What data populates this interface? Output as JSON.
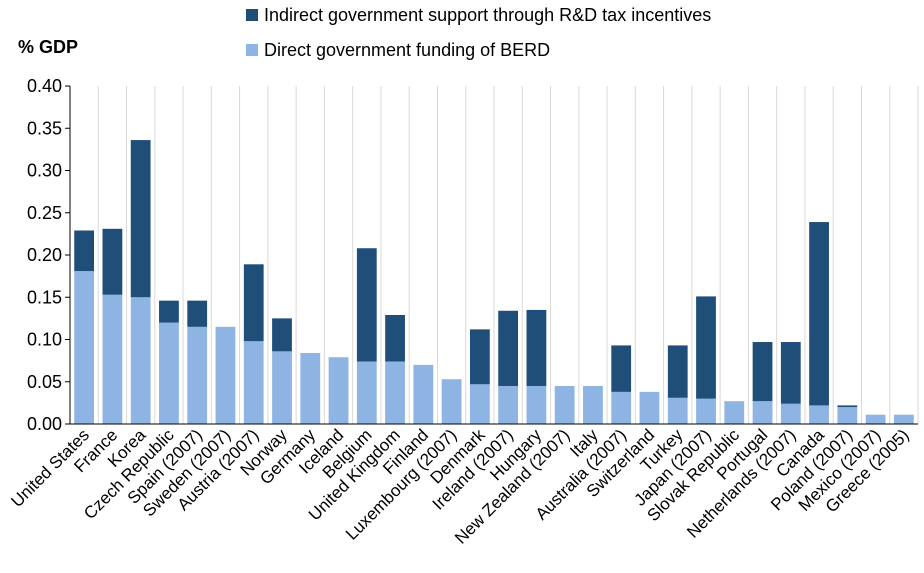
{
  "chart_data": {
    "type": "bar",
    "stacked": true,
    "ylabel": "% GDP",
    "ylim": [
      0,
      0.4
    ],
    "yticks": [
      "0.00",
      "0.05",
      "0.10",
      "0.15",
      "0.20",
      "0.25",
      "0.30",
      "0.35",
      "0.40"
    ],
    "grid": "vertical-category-separators",
    "legend_position": "top",
    "categories": [
      "United States",
      "France",
      "Korea",
      "Czech Republic",
      "Spain (2007)",
      "Sweden (2007)",
      "Austria (2007)",
      "Norway",
      "Germany",
      "Iceland",
      "Belgium",
      "United Kingdom",
      "Finland",
      "Luxembourg (2007)",
      "Denmark",
      "Ireland (2007)",
      "Hungary",
      "New Zealand (2007)",
      "Italy",
      "Australia (2007)",
      "Switzerland",
      "Turkey",
      "Japan (2007)",
      "Slovak Republic",
      "Portugal",
      "Netherlands (2007)",
      "Canada",
      "Poland (2007)",
      "Mexico (2007)",
      "Greece (2005)"
    ],
    "series": [
      {
        "name": "Direct government funding of BERD",
        "color": "#8db4e2",
        "values": [
          0.181,
          0.153,
          0.15,
          0.12,
          0.115,
          0.115,
          0.098,
          0.086,
          0.084,
          0.079,
          0.074,
          0.074,
          0.07,
          0.053,
          0.047,
          0.045,
          0.045,
          0.045,
          0.045,
          0.038,
          0.038,
          0.031,
          0.03,
          0.027,
          0.027,
          0.024,
          0.022,
          0.02,
          0.011,
          0.011
        ]
      },
      {
        "name": "Indirect government support through R&D tax incentives",
        "color": "#1f4e79",
        "values": [
          0.048,
          0.078,
          0.186,
          0.026,
          0.031,
          0.0,
          0.091,
          0.039,
          0.0,
          0.0,
          0.134,
          0.055,
          0.0,
          0.0,
          0.065,
          0.089,
          0.09,
          0.0,
          0.0,
          0.055,
          0.0,
          0.062,
          0.121,
          0.0,
          0.07,
          0.073,
          0.217,
          0.002,
          0.0,
          0.0
        ]
      }
    ]
  }
}
